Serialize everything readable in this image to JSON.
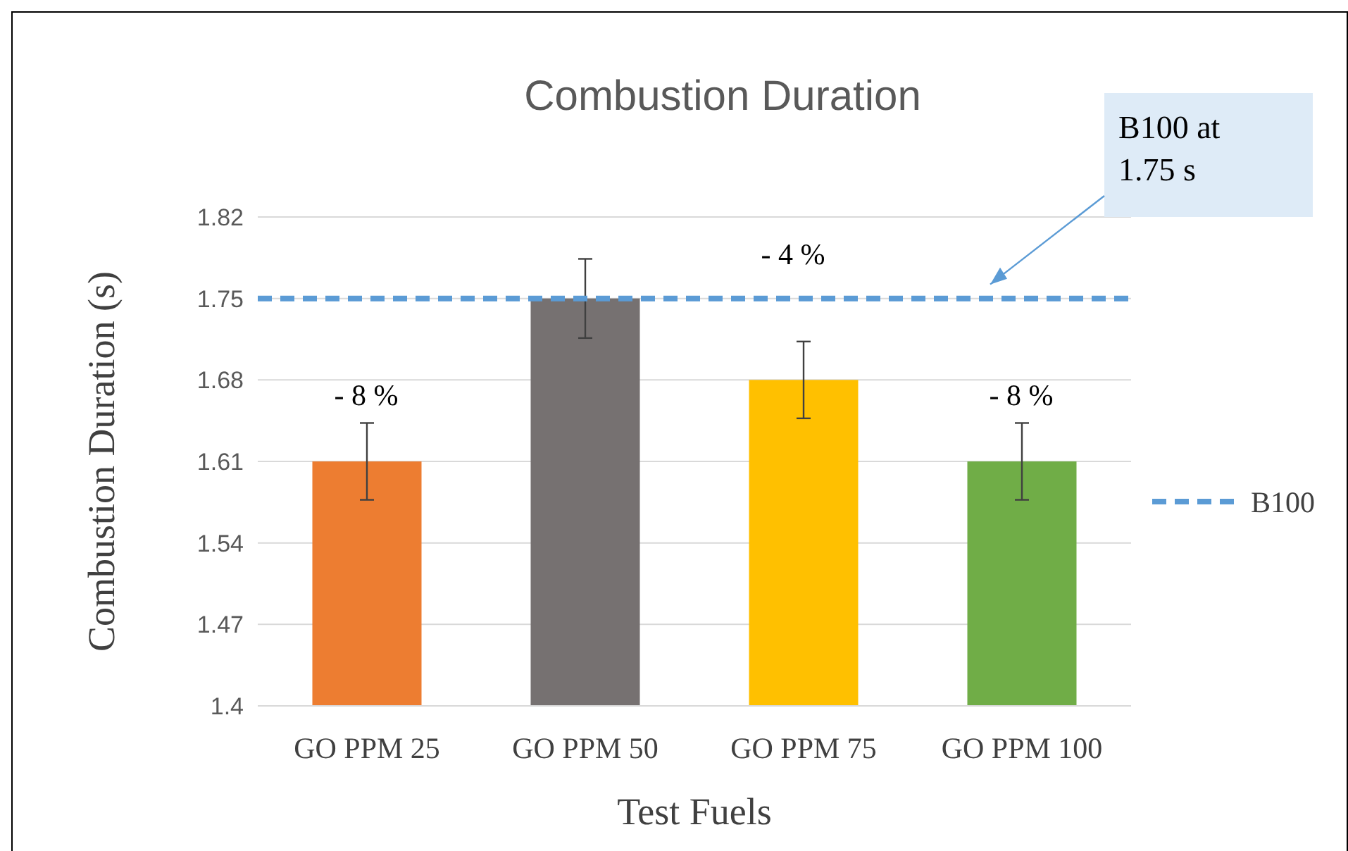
{
  "chart_data": {
    "type": "bar",
    "title": "Combustion Duration",
    "xlabel": "Test Fuels",
    "ylabel": "Combustion Duration (s)",
    "categories": [
      "GO PPM 25",
      "GO PPM 50",
      "GO PPM 75",
      "GO PPM 100"
    ],
    "values": [
      1.61,
      1.75,
      1.68,
      1.61
    ],
    "colors": [
      "#ed7d31",
      "#767171",
      "#ffc000",
      "#70ad47"
    ],
    "errors": [
      0.033,
      0.034,
      0.033,
      0.033
    ],
    "ylim": [
      1.4,
      1.82
    ],
    "yticks": [
      1.4,
      1.47,
      1.54,
      1.61,
      1.68,
      1.75,
      1.82
    ],
    "grid": "y",
    "ref_lines": [
      {
        "axis": "y",
        "value": 1.75,
        "label": "B100",
        "color": "#5b9bd5",
        "line_style": "dashed"
      }
    ],
    "legend": "right",
    "annotations": [
      "- 8 %",
      "- 4 %",
      "- 8 %",
      "B100 at 1.75 s"
    ]
  }
}
